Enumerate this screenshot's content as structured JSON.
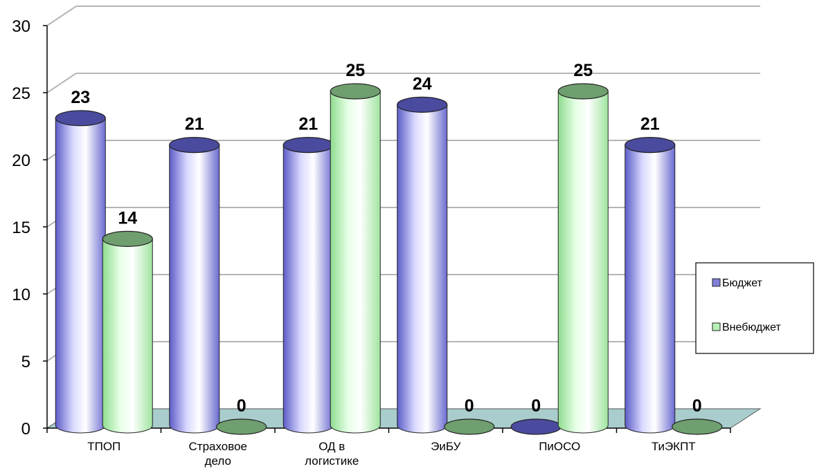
{
  "chart_data": {
    "type": "bar",
    "categories": [
      [
        "ТПОП"
      ],
      [
        "Страховое",
        "дело"
      ],
      [
        "ОД в",
        "логистике"
      ],
      [
        "ЭиБУ"
      ],
      [
        "ПиОСО"
      ],
      [
        "ТиЭКПТ"
      ]
    ],
    "series": [
      {
        "name": "Бюджет",
        "values": [
          23,
          21,
          21,
          24,
          0,
          21
        ],
        "color": "#7f7fd9",
        "top_color": "#4a4a9e"
      },
      {
        "name": "Внебюджет",
        "values": [
          14,
          0,
          25,
          0,
          25,
          0
        ],
        "color": "#b8f0b8",
        "top_color": "#6f9e6f"
      }
    ],
    "ylim": [
      0,
      30
    ],
    "yticks": [
      0,
      5,
      10,
      15,
      20,
      25,
      30
    ],
    "grid": true,
    "floor_color": "#a9cdcd",
    "legend_position": "right"
  }
}
